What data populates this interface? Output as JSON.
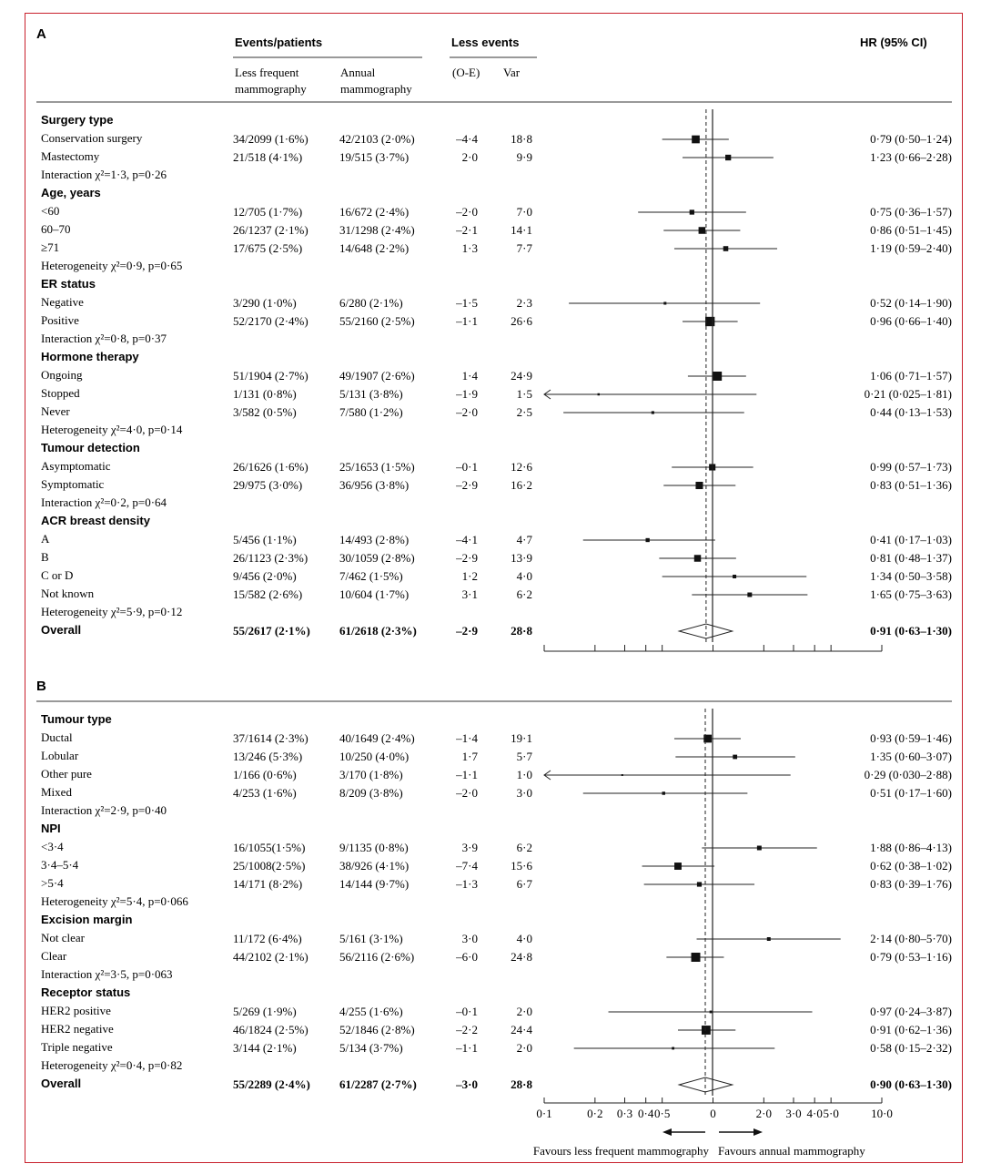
{
  "headers": {
    "panel_a": "A",
    "panel_b": "B",
    "events_patients": "Events/patients",
    "less_frequent_line1": "Less frequent",
    "less_frequent_line2": "mammography",
    "annual_line1": "Annual",
    "annual_line2": "mammography",
    "less_events": "Less events",
    "oe": "(O-E)",
    "var": "Var",
    "hr": "HR (95% CI)"
  },
  "chart_data": [
    {
      "type": "forest",
      "panel": "A",
      "x_scale": "log",
      "xlim": [
        0.1,
        10.0
      ],
      "rows": [
        {
          "kind": "heading",
          "label": "Surgery type"
        },
        {
          "kind": "item",
          "label": "Conservation surgery",
          "lf": "34/2099 (1·6%)",
          "an": "42/2103 (2·0%)",
          "oe": "–4·4",
          "var": "18·8",
          "hrText": "0·79 (0·50–1·24)",
          "hr": 0.79,
          "lo": 0.5,
          "hi": 1.24
        },
        {
          "kind": "item",
          "label": "Mastectomy",
          "lf": "21/518 (4·1%)",
          "an": "19/515 (3·7%)",
          "oe": "2·0",
          "var": "9·9",
          "hrText": "1·23 (0·66–2·28)",
          "hr": 1.23,
          "lo": 0.66,
          "hi": 2.28
        },
        {
          "kind": "note",
          "label": "Interaction χ²=1·3, p=0·26"
        },
        {
          "kind": "heading",
          "label": "Age, years"
        },
        {
          "kind": "item",
          "label": "<60",
          "lf": "12/705 (1·7%)",
          "an": "16/672 (2·4%)",
          "oe": "–2·0",
          "var": "7·0",
          "hrText": "0·75 (0·36–1·57)",
          "hr": 0.75,
          "lo": 0.36,
          "hi": 1.57
        },
        {
          "kind": "item",
          "label": "60–70",
          "lf": "26/1237 (2·1%)",
          "an": "31/1298 (2·4%)",
          "oe": "–2·1",
          "var": "14·1",
          "hrText": "0·86 (0·51–1·45)",
          "hr": 0.86,
          "lo": 0.51,
          "hi": 1.45
        },
        {
          "kind": "item",
          "label": "≥71",
          "lf": "17/675 (2·5%)",
          "an": "14/648 (2·2%)",
          "oe": "1·3",
          "var": "7·7",
          "hrText": "1·19 (0·59–2·40)",
          "hr": 1.19,
          "lo": 0.59,
          "hi": 2.4
        },
        {
          "kind": "note",
          "label": "Heterogeneity χ²=0·9, p=0·65"
        },
        {
          "kind": "heading",
          "label": "ER status"
        },
        {
          "kind": "item",
          "label": "Negative",
          "lf": "3/290 (1·0%)",
          "an": "6/280 (2·1%)",
          "oe": "–1·5",
          "var": "2·3",
          "hrText": "0·52 (0·14–1·90)",
          "hr": 0.52,
          "lo": 0.14,
          "hi": 1.9
        },
        {
          "kind": "item",
          "label": "Positive",
          "lf": "52/2170 (2·4%)",
          "an": "55/2160 (2·5%)",
          "oe": "–1·1",
          "var": "26·6",
          "hrText": "0·96 (0·66–1·40)",
          "hr": 0.96,
          "lo": 0.66,
          "hi": 1.4
        },
        {
          "kind": "note",
          "label": "Interaction χ²=0·8, p=0·37"
        },
        {
          "kind": "heading",
          "label": "Hormone therapy"
        },
        {
          "kind": "item",
          "label": "Ongoing",
          "lf": "51/1904 (2·7%)",
          "an": "49/1907 (2·6%)",
          "oe": "1·4",
          "var": "24·9",
          "hrText": "1·06 (0·71–1·57)",
          "hr": 1.06,
          "lo": 0.71,
          "hi": 1.57
        },
        {
          "kind": "item",
          "label": "Stopped",
          "lf": "1/131 (0·8%)",
          "an": "5/131 (3·8%)",
          "oe": "–1·9",
          "var": "1·5",
          "hrText": "0·21 (0·025–1·81)",
          "hr": 0.21,
          "lo": 0.025,
          "hi": 1.81
        },
        {
          "kind": "item",
          "label": "Never",
          "lf": "3/582 (0·5%)",
          "an": "7/580 (1·2%)",
          "oe": "–2·0",
          "var": "2·5",
          "hrText": "0·44 (0·13–1·53)",
          "hr": 0.44,
          "lo": 0.13,
          "hi": 1.53
        },
        {
          "kind": "note",
          "label": "Heterogeneity χ²=4·0, p=0·14"
        },
        {
          "kind": "heading",
          "label": "Tumour detection"
        },
        {
          "kind": "item",
          "label": "Asymptomatic",
          "lf": "26/1626 (1·6%)",
          "an": "25/1653 (1·5%)",
          "oe": "–0·1",
          "var": "12·6",
          "hrText": "0·99 (0·57–1·73)",
          "hr": 0.99,
          "lo": 0.57,
          "hi": 1.73
        },
        {
          "kind": "item",
          "label": "Symptomatic",
          "lf": "29/975 (3·0%)",
          "an": "36/956 (3·8%)",
          "oe": "–2·9",
          "var": "16·2",
          "hrText": "0·83 (0·51–1·36)",
          "hr": 0.83,
          "lo": 0.51,
          "hi": 1.36
        },
        {
          "kind": "note",
          "label": "Interaction χ²=0·2, p=0·64"
        },
        {
          "kind": "heading",
          "label": "ACR breast density"
        },
        {
          "kind": "item",
          "label": "A",
          "lf": "5/456 (1·1%)",
          "an": "14/493 (2·8%)",
          "oe": "–4·1",
          "var": "4·7",
          "hrText": "0·41 (0·17–1·03)",
          "hr": 0.41,
          "lo": 0.17,
          "hi": 1.03
        },
        {
          "kind": "item",
          "label": "B",
          "lf": "26/1123 (2·3%)",
          "an": "30/1059 (2·8%)",
          "oe": "–2·9",
          "var": "13·9",
          "hrText": "0·81 (0·48–1·37)",
          "hr": 0.81,
          "lo": 0.48,
          "hi": 1.37
        },
        {
          "kind": "item",
          "label": "C or D",
          "lf": "9/456 (2·0%)",
          "an": "7/462 (1·5%)",
          "oe": "1·2",
          "var": "4·0",
          "hrText": "1·34 (0·50–3·58)",
          "hr": 1.34,
          "lo": 0.5,
          "hi": 3.58
        },
        {
          "kind": "item",
          "label": "Not known",
          "lf": "15/582 (2·6%)",
          "an": "10/604 (1·7%)",
          "oe": "3·1",
          "var": "6·2",
          "hrText": "1·65 (0·75–3·63)",
          "hr": 1.65,
          "lo": 0.75,
          "hi": 3.63
        },
        {
          "kind": "note",
          "label": "Heterogeneity χ²=5·9, p=0·12"
        },
        {
          "kind": "overall",
          "label": "Overall",
          "lf": "55/2617 (2·1%)",
          "an": "61/2618 (2·3%)",
          "oe": "–2·9",
          "var": "28·8",
          "hrText": "0·91 (0·63–1·30)",
          "hr": 0.91,
          "lo": 0.63,
          "hi": 1.3
        }
      ]
    },
    {
      "type": "forest",
      "panel": "B",
      "x_scale": "log",
      "xlim": [
        0.1,
        10.0
      ],
      "x_ticks": [
        "0·1",
        "0·2",
        "0·3",
        "0·4",
        "0·5",
        "0",
        "2·0",
        "3·0",
        "4·0",
        "5·0",
        "10·0"
      ],
      "favours_left": "Favours less frequent mammography",
      "favours_right": "Favours annual mammography",
      "rows": [
        {
          "kind": "heading",
          "label": "Tumour type"
        },
        {
          "kind": "item",
          "label": "Ductal",
          "lf": "37/1614 (2·3%)",
          "an": "40/1649 (2·4%)",
          "oe": "–1·4",
          "var": "19·1",
          "hrText": "0·93 (0·59–1·46)",
          "hr": 0.93,
          "lo": 0.59,
          "hi": 1.46
        },
        {
          "kind": "item",
          "label": "Lobular",
          "lf": "13/246 (5·3%)",
          "an": "10/250 (4·0%)",
          "oe": "1·7",
          "var": "5·7",
          "hrText": "1·35 (0·60–3·07)",
          "hr": 1.35,
          "lo": 0.6,
          "hi": 3.07
        },
        {
          "kind": "item",
          "label": "Other pure",
          "lf": "1/166 (0·6%)",
          "an": "3/170 (1·8%)",
          "oe": "–1·1",
          "var": "1·0",
          "hrText": "0·29 (0·030–2·88)",
          "hr": 0.29,
          "lo": 0.03,
          "hi": 2.88
        },
        {
          "kind": "item",
          "label": "Mixed",
          "lf": "4/253 (1·6%)",
          "an": "8/209 (3·8%)",
          "oe": "–2·0",
          "var": "3·0",
          "hrText": "0·51 (0·17–1·60)",
          "hr": 0.51,
          "lo": 0.17,
          "hi": 1.6
        },
        {
          "kind": "note",
          "label": "Interaction χ²=2·9, p=0·40"
        },
        {
          "kind": "heading",
          "label": "NPI"
        },
        {
          "kind": "item",
          "label": "<3·4",
          "lf": "16/1055(1·5%)",
          "an": "9/1135 (0·8%)",
          "oe": "3·9",
          "var": "6·2",
          "hrText": "1·88 (0·86–4·13)",
          "hr": 1.88,
          "lo": 0.86,
          "hi": 4.13
        },
        {
          "kind": "item",
          "label": "3·4–5·4",
          "lf": "25/1008(2·5%)",
          "an": "38/926 (4·1%)",
          "oe": "–7·4",
          "var": "15·6",
          "hrText": "0·62 (0·38–1·02)",
          "hr": 0.62,
          "lo": 0.38,
          "hi": 1.02
        },
        {
          "kind": "item",
          "label": ">5·4",
          "lf": "14/171 (8·2%)",
          "an": "14/144 (9·7%)",
          "oe": "–1·3",
          "var": "6·7",
          "hrText": "0·83 (0·39–1·76)",
          "hr": 0.83,
          "lo": 0.39,
          "hi": 1.76
        },
        {
          "kind": "note",
          "label": "Heterogeneity χ²=5·4, p=0·066"
        },
        {
          "kind": "heading",
          "label": "Excision margin"
        },
        {
          "kind": "item",
          "label": "Not clear",
          "lf": "11/172 (6·4%)",
          "an": "5/161 (3·1%)",
          "oe": "3·0",
          "var": "4·0",
          "hrText": "2·14 (0·80–5·70)",
          "hr": 2.14,
          "lo": 0.8,
          "hi": 5.7
        },
        {
          "kind": "item",
          "label": "Clear",
          "lf": "44/2102 (2·1%)",
          "an": "56/2116 (2·6%)",
          "oe": "–6·0",
          "var": "24·8",
          "hrText": "0·79 (0·53–1·16)",
          "hr": 0.79,
          "lo": 0.53,
          "hi": 1.16
        },
        {
          "kind": "note",
          "label": "Interaction χ²=3·5, p=0·063"
        },
        {
          "kind": "heading",
          "label": "Receptor status"
        },
        {
          "kind": "item",
          "label": "HER2 positive",
          "lf": "5/269 (1·9%)",
          "an": "4/255 (1·6%)",
          "oe": "–0·1",
          "var": "2·0",
          "hrText": "0·97 (0·24–3·87)",
          "hr": 0.97,
          "lo": 0.24,
          "hi": 3.87
        },
        {
          "kind": "item",
          "label": "HER2 negative",
          "lf": "46/1824 (2·5%)",
          "an": "52/1846 (2·8%)",
          "oe": "–2·2",
          "var": "24·4",
          "hrText": "0·91 (0·62–1·36)",
          "hr": 0.91,
          "lo": 0.62,
          "hi": 1.36
        },
        {
          "kind": "item",
          "label": "Triple negative",
          "lf": "3/144 (2·1%)",
          "an": "5/134 (3·7%)",
          "oe": "–1·1",
          "var": "2·0",
          "hrText": "0·58 (0·15–2·32)",
          "hr": 0.58,
          "lo": 0.15,
          "hi": 2.32
        },
        {
          "kind": "note",
          "label": "Heterogeneity χ²=0·4, p=0·82"
        },
        {
          "kind": "overall",
          "label": "Overall",
          "lf": "55/2289 (2·4%)",
          "an": "61/2287 (2·7%)",
          "oe": "–3·0",
          "var": "28·8",
          "hrText": "0·90 (0·63–1·30)",
          "hr": 0.9,
          "lo": 0.63,
          "hi": 1.3
        }
      ]
    }
  ]
}
